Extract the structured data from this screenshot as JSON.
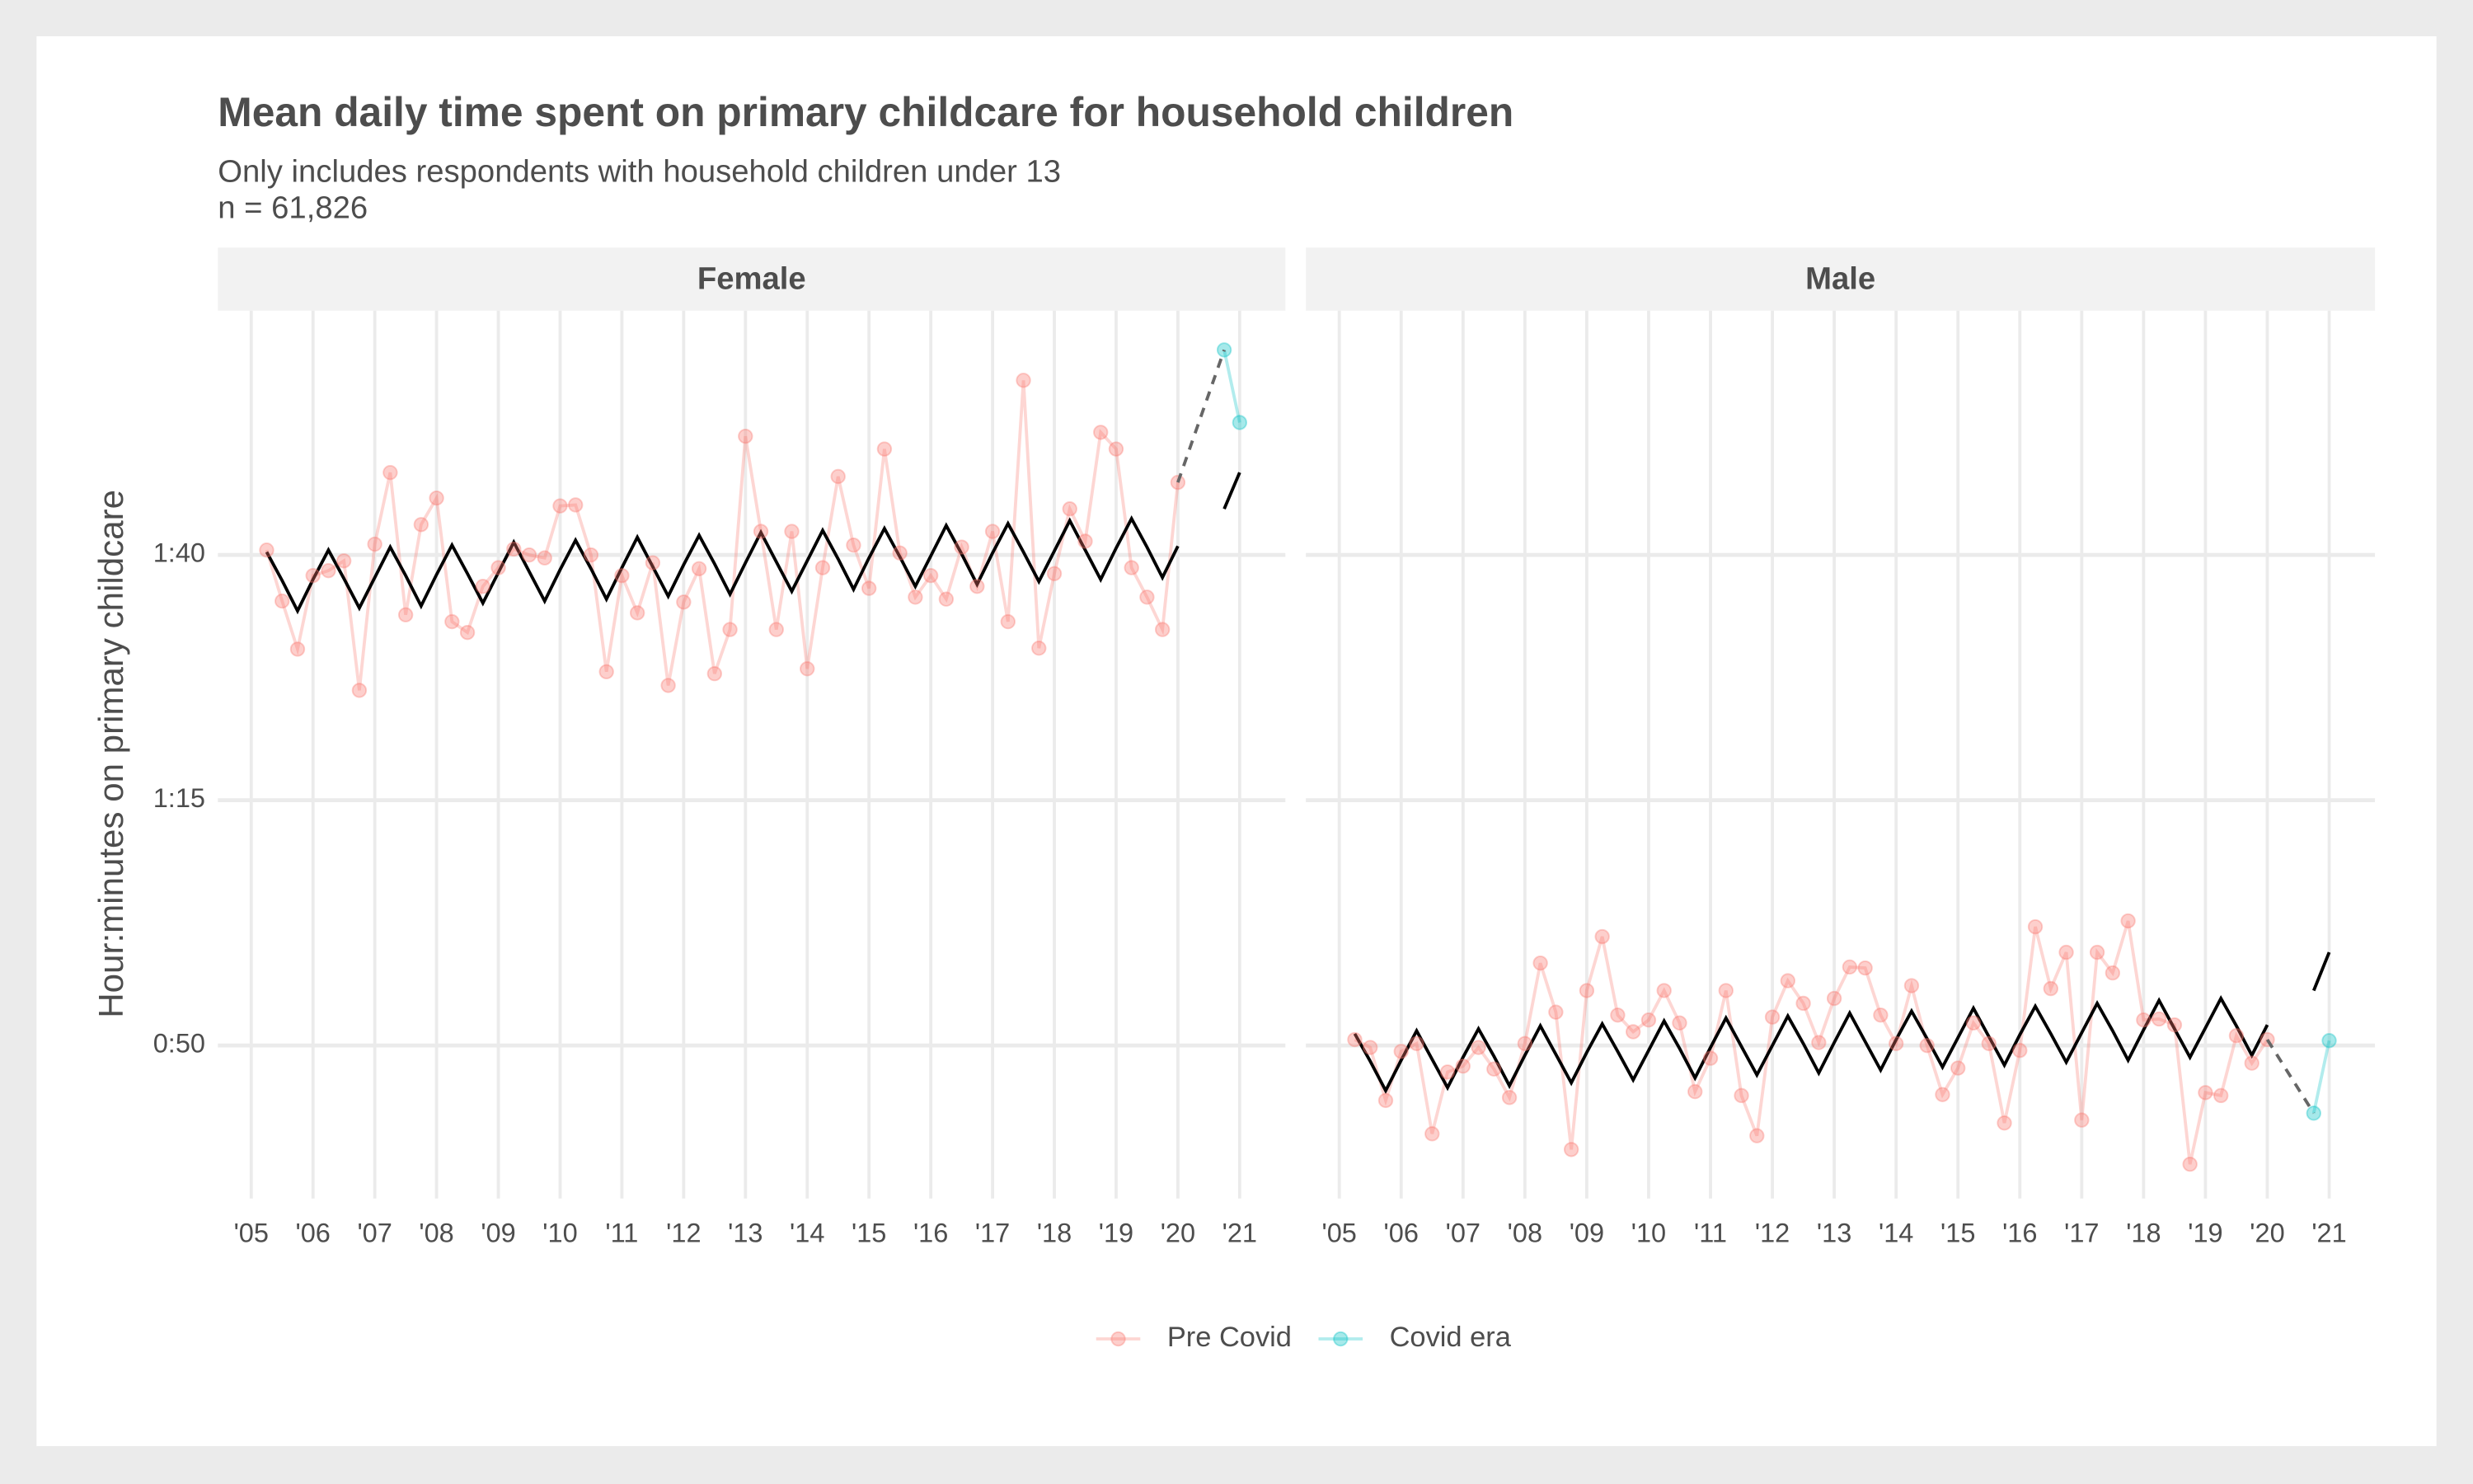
{
  "chart_data": {
    "type": "line",
    "title": "Mean daily time spent on primary childcare for household children",
    "subtitle": "Only includes respondents with household children under 13",
    "note": "n = 61,826",
    "y_label": "Hour:minutes on primary childcare",
    "ylim": [
      34.4,
      124.9
    ],
    "yticks": [
      {
        "value": 50,
        "label": "0:50"
      },
      {
        "value": 75,
        "label": "1:15"
      },
      {
        "value": 100,
        "label": "1:40"
      }
    ],
    "xlim": [
      2004.46,
      2021.74
    ],
    "xticks": [
      {
        "value": 2005,
        "label": "'05"
      },
      {
        "value": 2006,
        "label": "'06"
      },
      {
        "value": 2007,
        "label": "'07"
      },
      {
        "value": 2008,
        "label": "'08"
      },
      {
        "value": 2009,
        "label": "'09"
      },
      {
        "value": 2010,
        "label": "'10"
      },
      {
        "value": 2011,
        "label": "'11"
      },
      {
        "value": 2012,
        "label": "'12"
      },
      {
        "value": 2013,
        "label": "'13"
      },
      {
        "value": 2014,
        "label": "'14"
      },
      {
        "value": 2015,
        "label": "'15"
      },
      {
        "value": 2016,
        "label": "'16"
      },
      {
        "value": 2017,
        "label": "'17"
      },
      {
        "value": 2018,
        "label": "'18"
      },
      {
        "value": 2019,
        "label": "'19"
      },
      {
        "value": 2020,
        "label": "'20"
      },
      {
        "value": 2021,
        "label": "'21"
      }
    ],
    "grid": true,
    "legend": "bottom",
    "fit_color": "#000000",
    "panels": [
      {
        "facet": "Female",
        "series": [
          {
            "name": "Pre Covid",
            "color": "#f8766d",
            "x": [
              2005.25,
              2005.5,
              2005.75,
              2006,
              2006.25,
              2006.5,
              2006.75,
              2007,
              2007.25,
              2007.5,
              2007.75,
              2008,
              2008.25,
              2008.5,
              2008.75,
              2009,
              2009.25,
              2009.5,
              2009.75,
              2010,
              2010.25,
              2010.5,
              2010.75,
              2011,
              2011.25,
              2011.5,
              2011.75,
              2012,
              2012.25,
              2012.5,
              2012.75,
              2013,
              2013.25,
              2013.5,
              2013.75,
              2014,
              2014.25,
              2014.5,
              2014.75,
              2015,
              2015.25,
              2015.5,
              2015.75,
              2016,
              2016.25,
              2016.5,
              2016.75,
              2017,
              2017.25,
              2017.5,
              2017.75,
              2018,
              2018.25,
              2018.5,
              2018.75,
              2019,
              2019.25,
              2019.5,
              2019.75,
              2020
            ],
            "values": [
              100.5,
              95.3,
              90.4,
              97.9,
              98.4,
              99.4,
              86.2,
              101.1,
              108.4,
              93.9,
              103.1,
              105.8,
              93.2,
              92.1,
              96.8,
              98.7,
              100.6,
              100,
              99.7,
              105,
              105.1,
              100,
              88.1,
              97.9,
              94.1,
              99.2,
              86.7,
              95.2,
              98.6,
              87.9,
              92.4,
              112.1,
              102.4,
              92.4,
              102.4,
              88.4,
              98.7,
              108,
              101,
              96.6,
              110.8,
              100.2,
              95.7,
              97.9,
              95.5,
              100.8,
              96.8,
              102.4,
              93.2,
              117.8,
              90.5,
              98.1,
              104.7,
              101.4,
              112.5,
              110.8,
              98.7,
              95.7,
              92.4,
              107.4
            ],
            "fit": [
              100.3,
              97.4,
              94.3,
              97.5,
              100.5,
              97.6,
              94.6,
              97.7,
              100.8,
              97.9,
              94.8,
              98.0,
              101.0,
              98.1,
              95.1,
              98.2,
              101.3,
              98.3,
              95.3,
              98.5,
              101.5,
              98.6,
              95.5,
              98.7,
              101.8,
              98.8,
              95.8,
              99.0,
              102.0,
              99.1,
              96.0,
              99.2,
              102.3,
              99.3,
              96.3,
              99.4,
              102.5,
              99.6,
              96.5,
              99.7,
              102.7,
              99.8,
              96.8,
              99.9,
              103.0,
              100.1,
              97.0,
              100.2,
              103.2,
              100.3,
              97.3,
              100.4,
              103.5,
              100.5,
              97.5,
              100.7,
              103.7,
              100.8,
              97.7,
              100.9
            ]
          },
          {
            "name": "Covid era",
            "color": "#00bfc4",
            "x": [
              2020.75,
              2021
            ],
            "values": [
              120.9,
              113.5
            ],
            "fit": [
              104.7,
              108.4
            ]
          }
        ]
      },
      {
        "facet": "Male",
        "series": [
          {
            "name": "Pre Covid",
            "color": "#f8766d",
            "x": [
              2005.25,
              2005.5,
              2005.75,
              2006,
              2006.25,
              2006.5,
              2006.75,
              2007,
              2007.25,
              2007.5,
              2007.75,
              2008,
              2008.25,
              2008.5,
              2008.75,
              2009,
              2009.25,
              2009.5,
              2009.75,
              2010,
              2010.25,
              2010.5,
              2010.75,
              2011,
              2011.25,
              2011.5,
              2011.75,
              2012,
              2012.25,
              2012.5,
              2012.75,
              2013,
              2013.25,
              2013.5,
              2013.75,
              2014,
              2014.25,
              2014.5,
              2014.75,
              2015,
              2015.25,
              2015.5,
              2015.75,
              2016,
              2016.25,
              2016.5,
              2016.75,
              2017,
              2017.25,
              2017.5,
              2017.75,
              2018,
              2018.25,
              2018.5,
              2018.75,
              2019,
              2019.25,
              2019.5,
              2019.75,
              2020
            ],
            "values": [
              50.6,
              49.8,
              44.4,
              49.4,
              50.2,
              41.0,
              47.3,
              47.9,
              49.8,
              47.6,
              44.7,
              50.2,
              58.4,
              53.4,
              39.4,
              55.6,
              61.1,
              53.1,
              51.4,
              52.6,
              55.6,
              52.3,
              45.3,
              48.7,
              55.6,
              44.9,
              40.8,
              52.9,
              56.6,
              54.3,
              50.3,
              54.8,
              58.0,
              57.9,
              53.1,
              50.2,
              56.1,
              50.0,
              45.0,
              47.7,
              52.3,
              50.2,
              42.1,
              49.5,
              62.1,
              55.8,
              59.5,
              42.4,
              59.5,
              57.4,
              62.7,
              52.6,
              52.7,
              52.1,
              37.9,
              45.2,
              44.9,
              51.0,
              48.2,
              50.6
            ],
            "fit": [
              51.2,
              48.4,
              45.4,
              48.5,
              51.5,
              48.6,
              45.7,
              48.8,
              51.7,
              48.9,
              45.9,
              49.0,
              52.0,
              49.1,
              46.2,
              49.3,
              52.2,
              49.4,
              46.5,
              49.5,
              52.5,
              49.7,
              46.7,
              49.8,
              52.8,
              49.9,
              47.0,
              50.0,
              53.0,
              50.2,
              47.2,
              50.3,
              53.3,
              50.4,
              47.5,
              50.6,
              53.5,
              50.7,
              47.8,
              50.8,
              53.8,
              50.9,
              48.0,
              51.1,
              54.0,
              51.2,
              48.3,
              51.3,
              54.3,
              51.5,
              48.5,
              51.6,
              54.6,
              51.7,
              48.8,
              51.8,
              54.8,
              52.0,
              49.0,
              52.1
            ]
          },
          {
            "name": "Covid era",
            "color": "#00bfc4",
            "x": [
              2020.75,
              2021
            ],
            "values": [
              43.1,
              50.5
            ],
            "fit": [
              55.6,
              59.5
            ]
          }
        ]
      }
    ]
  }
}
